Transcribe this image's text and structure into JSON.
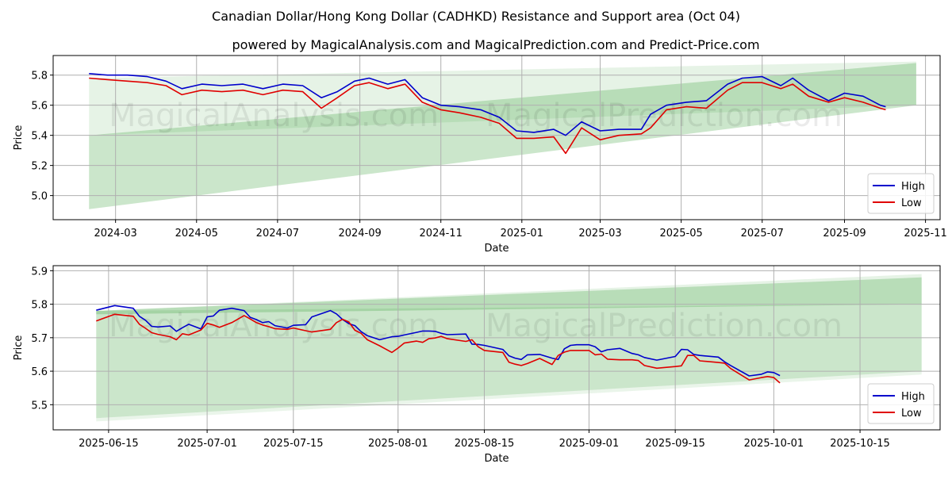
{
  "title": "Canadian Dollar/Hong Kong Dollar (CADHKD) Resistance and Support area (Oct 04)",
  "subtitle": "powered by MagicalAnalysis.com and MagicalPrediction.com and Predict-Price.com",
  "watermark": {
    "left": "MagicalAnalysis.com",
    "right": "MagicalPrediction.com"
  },
  "colors": {
    "high": "#0000cc",
    "low": "#e00000",
    "band": "#2e9a2e",
    "grid": "#b0b0b0"
  },
  "chart_data": [
    {
      "type": "line",
      "name": "top-chart",
      "xlabel": "Date",
      "ylabel": "Price",
      "xlim": [
        "2024-01-14",
        "2025-11-12"
      ],
      "ylim": [
        4.84,
        5.93
      ],
      "xticks": [
        {
          "date": "2024-03-01",
          "label": "2024-03"
        },
        {
          "date": "2024-05-01",
          "label": "2024-05"
        },
        {
          "date": "2024-07-01",
          "label": "2024-07"
        },
        {
          "date": "2024-09-01",
          "label": "2024-09"
        },
        {
          "date": "2024-11-01",
          "label": "2024-11"
        },
        {
          "date": "2025-01-01",
          "label": "2025-01"
        },
        {
          "date": "2025-03-01",
          "label": "2025-03"
        },
        {
          "date": "2025-05-01",
          "label": "2025-05"
        },
        {
          "date": "2025-07-01",
          "label": "2025-07"
        },
        {
          "date": "2025-09-01",
          "label": "2025-09"
        },
        {
          "date": "2025-11-01",
          "label": "2025-11"
        }
      ],
      "yticks": [
        5.0,
        5.2,
        5.4,
        5.6,
        5.8
      ],
      "legend": {
        "position": "bottom-right",
        "entries": [
          "High",
          "Low"
        ]
      },
      "bands": [
        {
          "name": "resistance-area",
          "x": [
            "2024-02-10",
            "2025-10-25"
          ],
          "lower": [
            5.4,
            5.6
          ],
          "upper": [
            5.78,
            5.89
          ],
          "opacity": 0.12
        },
        {
          "name": "support-area",
          "x": [
            "2024-02-10",
            "2025-10-25"
          ],
          "lower": [
            4.91,
            5.6
          ],
          "upper": [
            5.4,
            5.88
          ],
          "opacity": 0.25
        }
      ],
      "series": [
        {
          "name": "High",
          "x": [
            "2024-02-10",
            "2024-02-24",
            "2024-03-10",
            "2024-03-25",
            "2024-04-08",
            "2024-04-20",
            "2024-05-05",
            "2024-05-20",
            "2024-06-05",
            "2024-06-20",
            "2024-07-05",
            "2024-07-20",
            "2024-08-03",
            "2024-08-15",
            "2024-08-28",
            "2024-09-08",
            "2024-09-22",
            "2024-10-05",
            "2024-10-18",
            "2024-11-01",
            "2024-11-15",
            "2024-12-01",
            "2024-12-15",
            "2024-12-28",
            "2025-01-10",
            "2025-01-25",
            "2025-02-03",
            "2025-02-15",
            "2025-03-01",
            "2025-03-15",
            "2025-04-01",
            "2025-04-08",
            "2025-04-20",
            "2025-05-05",
            "2025-05-20",
            "2025-06-05",
            "2025-06-16",
            "2025-07-01",
            "2025-07-15",
            "2025-07-24",
            "2025-08-05",
            "2025-08-20",
            "2025-09-01",
            "2025-09-15",
            "2025-09-28",
            "2025-10-02"
          ],
          "values": [
            5.81,
            5.8,
            5.8,
            5.79,
            5.76,
            5.71,
            5.74,
            5.73,
            5.74,
            5.71,
            5.74,
            5.73,
            5.65,
            5.69,
            5.76,
            5.78,
            5.74,
            5.77,
            5.65,
            5.6,
            5.59,
            5.57,
            5.52,
            5.43,
            5.42,
            5.44,
            5.4,
            5.49,
            5.43,
            5.44,
            5.44,
            5.54,
            5.6,
            5.62,
            5.63,
            5.74,
            5.78,
            5.79,
            5.73,
            5.78,
            5.7,
            5.63,
            5.68,
            5.66,
            5.6,
            5.59
          ]
        },
        {
          "name": "Low",
          "x": [
            "2024-02-10",
            "2024-02-24",
            "2024-03-10",
            "2024-03-25",
            "2024-04-08",
            "2024-04-20",
            "2024-05-05",
            "2024-05-20",
            "2024-06-05",
            "2024-06-20",
            "2024-07-05",
            "2024-07-20",
            "2024-08-03",
            "2024-08-15",
            "2024-08-28",
            "2024-09-08",
            "2024-09-22",
            "2024-10-05",
            "2024-10-18",
            "2024-11-01",
            "2024-11-15",
            "2024-12-01",
            "2024-12-15",
            "2024-12-28",
            "2025-01-10",
            "2025-01-25",
            "2025-02-03",
            "2025-02-15",
            "2025-03-01",
            "2025-03-15",
            "2025-04-01",
            "2025-04-08",
            "2025-04-20",
            "2025-05-05",
            "2025-05-20",
            "2025-06-05",
            "2025-06-16",
            "2025-07-01",
            "2025-07-15",
            "2025-07-24",
            "2025-08-05",
            "2025-08-20",
            "2025-09-01",
            "2025-09-15",
            "2025-09-28",
            "2025-10-02"
          ],
          "values": [
            5.78,
            5.77,
            5.76,
            5.75,
            5.73,
            5.67,
            5.7,
            5.69,
            5.7,
            5.67,
            5.7,
            5.69,
            5.58,
            5.65,
            5.73,
            5.75,
            5.71,
            5.74,
            5.62,
            5.57,
            5.55,
            5.52,
            5.48,
            5.38,
            5.38,
            5.39,
            5.28,
            5.45,
            5.37,
            5.4,
            5.41,
            5.45,
            5.57,
            5.59,
            5.58,
            5.7,
            5.75,
            5.75,
            5.71,
            5.74,
            5.66,
            5.62,
            5.65,
            5.62,
            5.58,
            5.57
          ]
        }
      ]
    },
    {
      "type": "line",
      "name": "bottom-chart",
      "xlabel": "Date",
      "ylabel": "Price",
      "xlim": [
        "2025-06-06",
        "2025-10-28"
      ],
      "ylim": [
        5.425,
        5.915
      ],
      "xticks": [
        {
          "date": "2025-06-15",
          "label": "2025-06-15"
        },
        {
          "date": "2025-07-01",
          "label": "2025-07-01"
        },
        {
          "date": "2025-07-15",
          "label": "2025-07-15"
        },
        {
          "date": "2025-08-01",
          "label": "2025-08-01"
        },
        {
          "date": "2025-08-15",
          "label": "2025-08-15"
        },
        {
          "date": "2025-09-01",
          "label": "2025-09-01"
        },
        {
          "date": "2025-09-15",
          "label": "2025-09-15"
        },
        {
          "date": "2025-10-01",
          "label": "2025-10-01"
        },
        {
          "date": "2025-10-15",
          "label": "2025-10-15"
        }
      ],
      "yticks": [
        5.5,
        5.6,
        5.7,
        5.8,
        5.9
      ],
      "legend": {
        "position": "bottom-right",
        "entries": [
          "High",
          "Low"
        ]
      },
      "bands": [
        {
          "name": "resistance-area",
          "x": [
            "2025-06-13",
            "2025-10-25"
          ],
          "lower": [
            5.78,
            5.8
          ],
          "upper": [
            5.78,
            5.89
          ],
          "opacity": 0.12
        },
        {
          "name": "resistance-area-core",
          "x": [
            "2025-06-13",
            "2025-10-25"
          ],
          "lower": [
            5.77,
            5.8
          ],
          "upper": [
            5.78,
            5.88
          ],
          "opacity": 0.25
        },
        {
          "name": "support-area",
          "x": [
            "2025-06-13",
            "2025-10-25"
          ],
          "lower": [
            5.46,
            5.6
          ],
          "upper": [
            5.78,
            5.8
          ],
          "opacity": 0.25
        },
        {
          "name": "support-area-fade",
          "x": [
            "2025-06-13",
            "2025-10-25"
          ],
          "lower": [
            5.45,
            5.59
          ],
          "upper": [
            5.46,
            5.6
          ],
          "opacity": 0.1
        }
      ],
      "series": [
        {
          "name": "High",
          "x": [
            "2025-06-13",
            "2025-06-16",
            "2025-06-19",
            "2025-06-20",
            "2025-06-21",
            "2025-06-22",
            "2025-06-23",
            "2025-06-25",
            "2025-06-26",
            "2025-06-27",
            "2025-06-28",
            "2025-06-30",
            "2025-07-01",
            "2025-07-02",
            "2025-07-03",
            "2025-07-05",
            "2025-07-07",
            "2025-07-08",
            "2025-07-09",
            "2025-07-10",
            "2025-07-11",
            "2025-07-12",
            "2025-07-14",
            "2025-07-15",
            "2025-07-17",
            "2025-07-18",
            "2025-07-21",
            "2025-07-22",
            "2025-07-23",
            "2025-07-24",
            "2025-07-25",
            "2025-07-26",
            "2025-07-27",
            "2025-07-29",
            "2025-07-31",
            "2025-08-01",
            "2025-08-02",
            "2025-08-04",
            "2025-08-05",
            "2025-08-06",
            "2025-08-07",
            "2025-08-08",
            "2025-08-09",
            "2025-08-12",
            "2025-08-13",
            "2025-08-14",
            "2025-08-15",
            "2025-08-18",
            "2025-08-19",
            "2025-08-20",
            "2025-08-21",
            "2025-08-22",
            "2025-08-24",
            "2025-08-26",
            "2025-08-27",
            "2025-08-28",
            "2025-08-29",
            "2025-08-30",
            "2025-09-01",
            "2025-09-02",
            "2025-09-03",
            "2025-09-04",
            "2025-09-06",
            "2025-09-08",
            "2025-09-09",
            "2025-09-10",
            "2025-09-12",
            "2025-09-15",
            "2025-09-16",
            "2025-09-17",
            "2025-09-18",
            "2025-09-19",
            "2025-09-22",
            "2025-09-23",
            "2025-09-24",
            "2025-09-27",
            "2025-09-29",
            "2025-09-30",
            "2025-10-01",
            "2025-10-02"
          ],
          "values": [
            5.782,
            5.796,
            5.788,
            5.764,
            5.752,
            5.734,
            5.732,
            5.735,
            5.719,
            5.73,
            5.74,
            5.726,
            5.762,
            5.765,
            5.782,
            5.788,
            5.781,
            5.761,
            5.754,
            5.745,
            5.748,
            5.736,
            5.729,
            5.737,
            5.739,
            5.762,
            5.781,
            5.771,
            5.754,
            5.742,
            5.736,
            5.718,
            5.706,
            5.694,
            5.703,
            5.704,
            5.708,
            5.716,
            5.72,
            5.72,
            5.719,
            5.713,
            5.709,
            5.711,
            5.681,
            5.68,
            5.677,
            5.665,
            5.646,
            5.639,
            5.635,
            5.649,
            5.65,
            5.639,
            5.635,
            5.667,
            5.677,
            5.679,
            5.679,
            5.673,
            5.658,
            5.664,
            5.668,
            5.653,
            5.649,
            5.641,
            5.633,
            5.644,
            5.665,
            5.664,
            5.65,
            5.647,
            5.642,
            5.628,
            5.617,
            5.586,
            5.591,
            5.598,
            5.596,
            5.587
          ]
        },
        {
          "name": "Low",
          "x": [
            "2025-06-13",
            "2025-06-16",
            "2025-06-19",
            "2025-06-20",
            "2025-06-21",
            "2025-06-22",
            "2025-06-23",
            "2025-06-25",
            "2025-06-26",
            "2025-06-27",
            "2025-06-28",
            "2025-06-30",
            "2025-07-01",
            "2025-07-02",
            "2025-07-03",
            "2025-07-05",
            "2025-07-07",
            "2025-07-08",
            "2025-07-09",
            "2025-07-10",
            "2025-07-11",
            "2025-07-12",
            "2025-07-14",
            "2025-07-15",
            "2025-07-17",
            "2025-07-18",
            "2025-07-21",
            "2025-07-22",
            "2025-07-23",
            "2025-07-24",
            "2025-07-25",
            "2025-07-26",
            "2025-07-27",
            "2025-07-29",
            "2025-07-31",
            "2025-08-01",
            "2025-08-02",
            "2025-08-04",
            "2025-08-05",
            "2025-08-06",
            "2025-08-07",
            "2025-08-08",
            "2025-08-09",
            "2025-08-12",
            "2025-08-13",
            "2025-08-14",
            "2025-08-15",
            "2025-08-18",
            "2025-08-19",
            "2025-08-20",
            "2025-08-21",
            "2025-08-22",
            "2025-08-24",
            "2025-08-26",
            "2025-08-27",
            "2025-08-28",
            "2025-08-29",
            "2025-08-30",
            "2025-09-01",
            "2025-09-02",
            "2025-09-03",
            "2025-09-04",
            "2025-09-06",
            "2025-09-08",
            "2025-09-09",
            "2025-09-10",
            "2025-09-12",
            "2025-09-15",
            "2025-09-16",
            "2025-09-17",
            "2025-09-18",
            "2025-09-19",
            "2025-09-22",
            "2025-09-23",
            "2025-09-24",
            "2025-09-27",
            "2025-09-29",
            "2025-09-30",
            "2025-10-01",
            "2025-10-02"
          ],
          "values": [
            5.75,
            5.77,
            5.764,
            5.74,
            5.728,
            5.715,
            5.71,
            5.703,
            5.694,
            5.712,
            5.708,
            5.723,
            5.743,
            5.738,
            5.731,
            5.745,
            5.766,
            5.756,
            5.745,
            5.738,
            5.733,
            5.727,
            5.725,
            5.729,
            5.721,
            5.717,
            5.725,
            5.745,
            5.755,
            5.747,
            5.722,
            5.713,
            5.694,
            5.676,
            5.656,
            5.669,
            5.684,
            5.69,
            5.686,
            5.697,
            5.699,
            5.704,
            5.697,
            5.689,
            5.694,
            5.673,
            5.662,
            5.656,
            5.627,
            5.621,
            5.617,
            5.623,
            5.638,
            5.62,
            5.647,
            5.657,
            5.662,
            5.662,
            5.662,
            5.649,
            5.651,
            5.636,
            5.634,
            5.634,
            5.632,
            5.617,
            5.609,
            5.614,
            5.616,
            5.647,
            5.647,
            5.631,
            5.626,
            5.624,
            5.608,
            5.574,
            5.581,
            5.584,
            5.581,
            5.565
          ]
        }
      ]
    }
  ]
}
